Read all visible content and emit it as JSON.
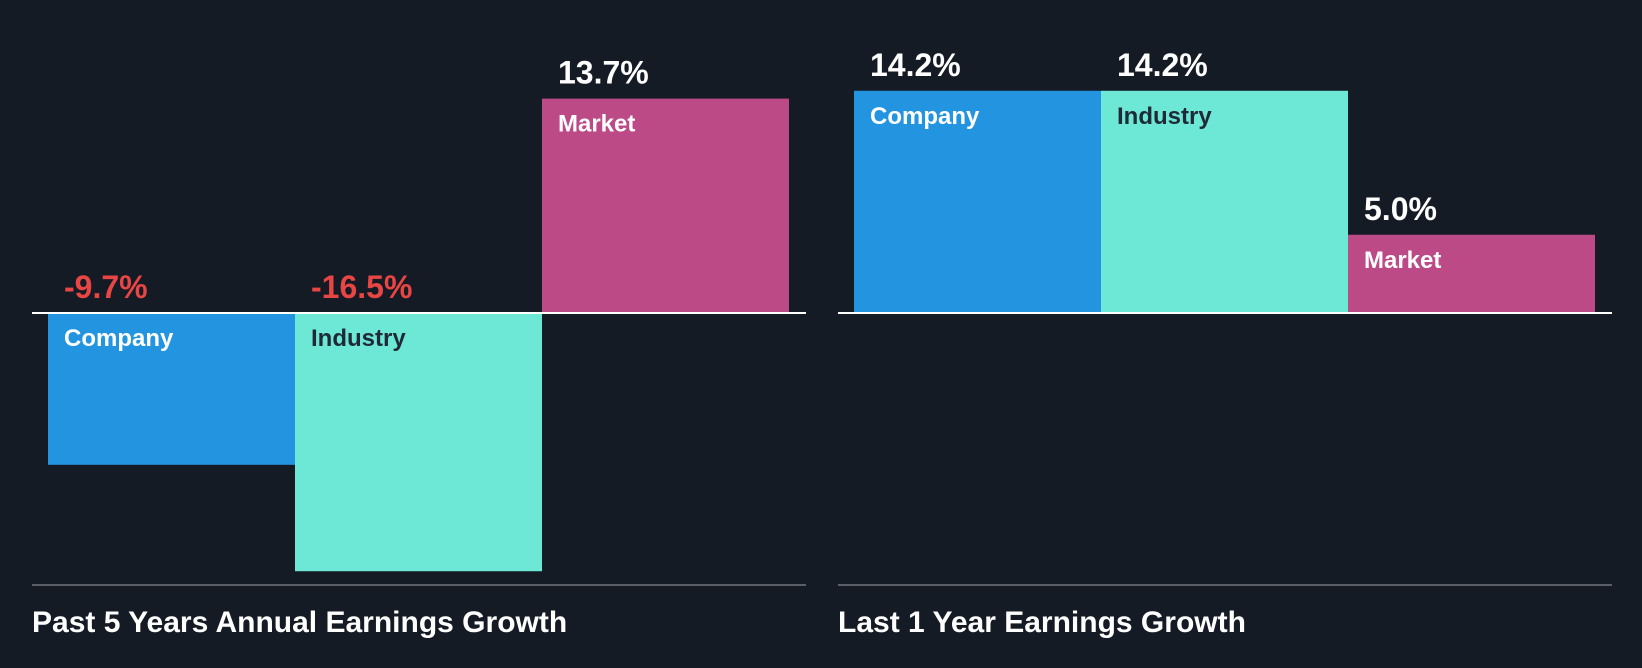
{
  "chart_data": [
    {
      "type": "bar",
      "title": "Past 5 Years Annual Earnings Growth",
      "categories": [
        "Company",
        "Industry",
        "Market"
      ],
      "values": [
        -9.7,
        -16.5,
        13.7
      ],
      "value_labels": [
        "-9.7%",
        "-16.5%",
        "13.7%"
      ],
      "unit": "%",
      "ylim": [
        -16.5,
        14.2
      ],
      "grid": false,
      "legend": "none"
    },
    {
      "type": "bar",
      "title": "Last 1 Year Earnings Growth",
      "categories": [
        "Company",
        "Industry",
        "Market"
      ],
      "values": [
        14.2,
        14.2,
        5.0
      ],
      "value_labels": [
        "14.2%",
        "14.2%",
        "5.0%"
      ],
      "unit": "%",
      "ylim": [
        -16.5,
        14.2
      ],
      "grid": false,
      "legend": "none"
    }
  ],
  "colors": {
    "background": "#151b24",
    "company": "#2394e0",
    "industry": "#6ee8d6",
    "market": "#bb4a87",
    "negative_value": "#e84545",
    "positive_value": "#ffffff",
    "zero_line": "#ffffff",
    "baseline": "#5a5f68",
    "label_on_dark": "#ffffff",
    "label_on_light": "#1e2a35"
  }
}
